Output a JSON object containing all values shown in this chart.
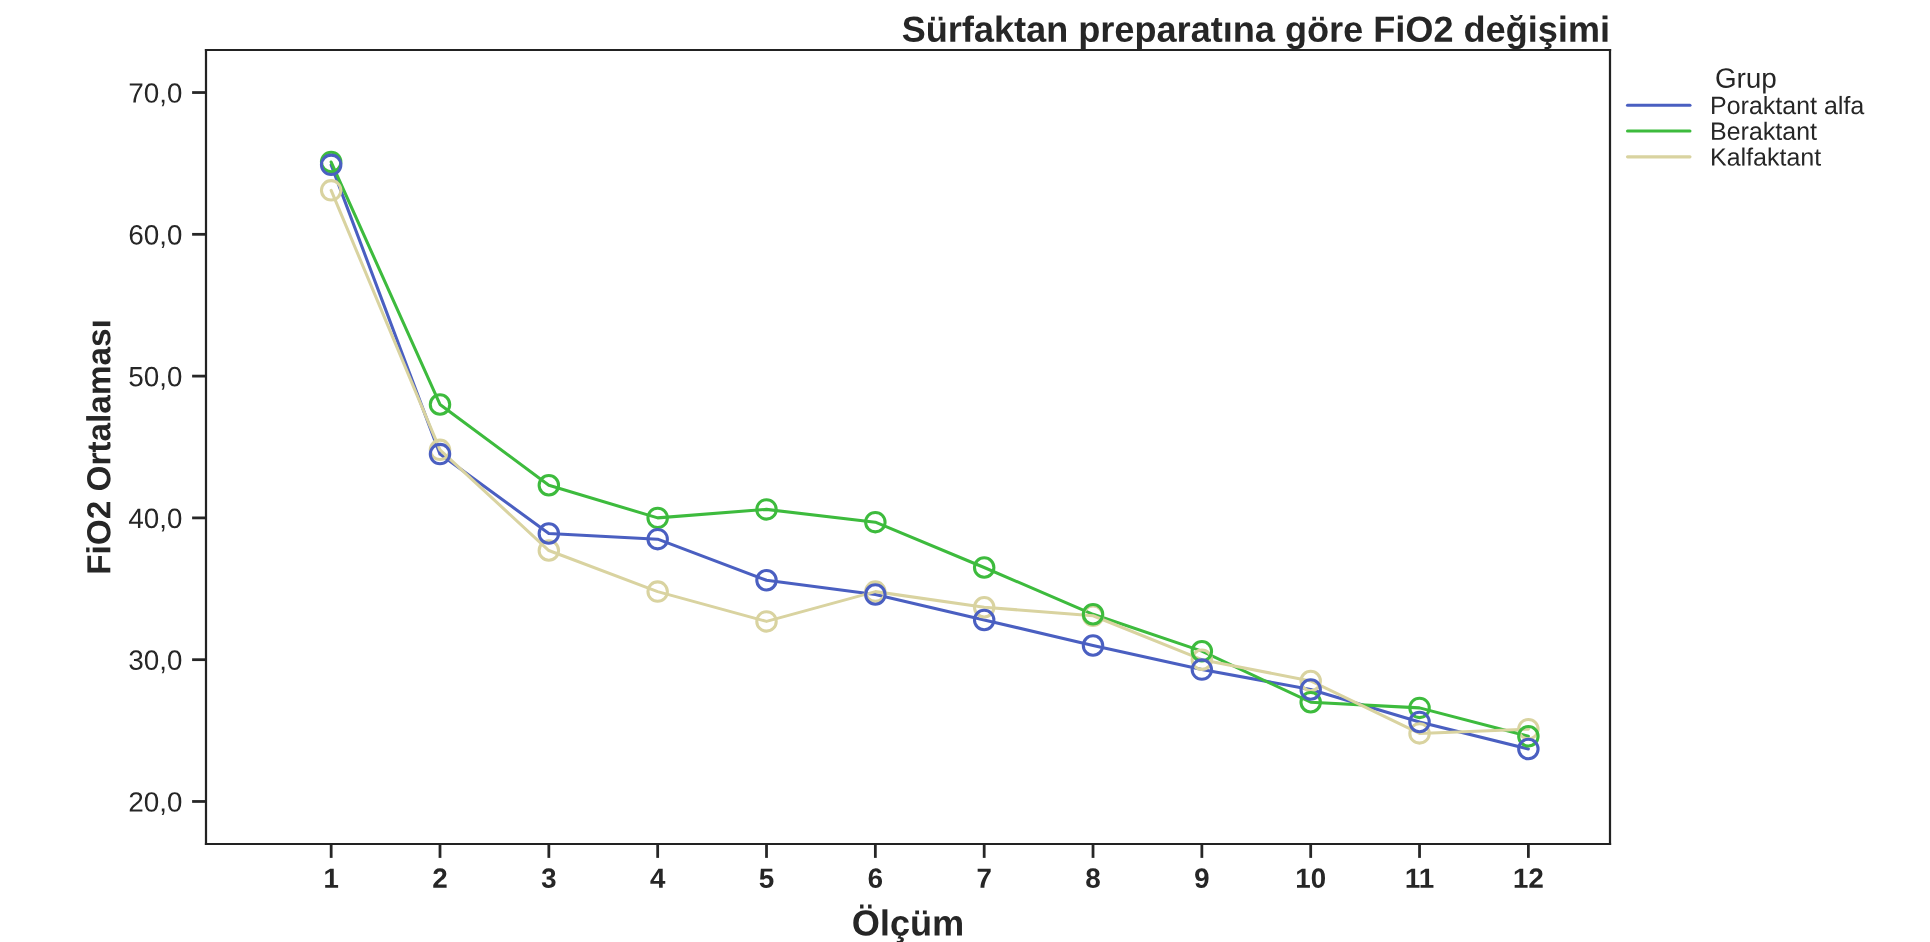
{
  "chart_data": {
    "type": "line",
    "title": "Sürfaktan preparatına göre FiO2 değişimi",
    "xlabel": "Ölçüm",
    "ylabel": "FiO2 Ortalaması",
    "legend_title": "Grup",
    "categories": [
      "1",
      "2",
      "3",
      "4",
      "5",
      "6",
      "7",
      "8",
      "9",
      "10",
      "11",
      "12"
    ],
    "series": [
      {
        "name": "Poraktant alfa",
        "color": "#4a5fc1",
        "values": [
          64.9,
          44.5,
          38.9,
          38.5,
          35.6,
          34.6,
          32.8,
          31.0,
          29.3,
          27.9,
          25.6,
          23.7
        ]
      },
      {
        "name": "Beraktant",
        "color": "#3dbb3d",
        "values": [
          65.1,
          48.0,
          42.3,
          40.0,
          40.6,
          39.7,
          36.5,
          33.2,
          30.6,
          27.0,
          26.6,
          24.6
        ]
      },
      {
        "name": "Kalfaktant",
        "color": "#d9d3a0",
        "values": [
          63.1,
          44.8,
          37.7,
          34.8,
          32.7,
          34.8,
          33.7,
          33.1,
          30.0,
          28.5,
          24.8,
          25.1
        ]
      }
    ],
    "ylim": [
      17,
      73
    ],
    "yticks": [
      {
        "value": 20,
        "label": "20,0"
      },
      {
        "value": 30,
        "label": "30,0"
      },
      {
        "value": 40,
        "label": "40,0"
      },
      {
        "value": 50,
        "label": "50,0"
      },
      {
        "value": 60,
        "label": "60,0"
      },
      {
        "value": 70,
        "label": "70,0"
      }
    ],
    "grid": false,
    "legend": "top right",
    "marker": "circle",
    "line_style": "solid"
  }
}
